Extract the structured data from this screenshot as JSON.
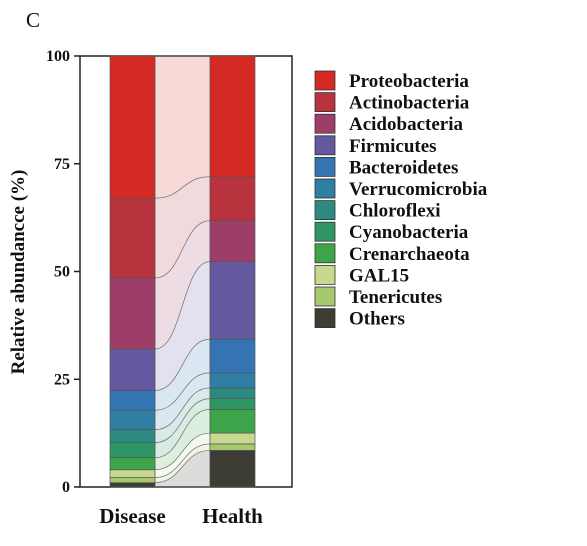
{
  "panel_label": "C",
  "chart_data": {
    "type": "bar",
    "stacked": true,
    "alluvial_links": true,
    "ylabel": "Relative abundancce (%)",
    "xlabel": "",
    "ylim": [
      0,
      100
    ],
    "yticks": [
      0,
      25,
      50,
      75,
      100
    ],
    "categories": [
      "Disease",
      "Health"
    ],
    "legend_position": "right",
    "series": [
      {
        "name": "Proteobacteria",
        "color": "#d52a24",
        "values": [
          33.0,
          28.0
        ]
      },
      {
        "name": "Actinobacteria",
        "color": "#b8333d",
        "values": [
          18.5,
          10.2
        ]
      },
      {
        "name": "Acidobacteria",
        "color": "#9e3e68",
        "values": [
          16.5,
          9.5
        ]
      },
      {
        "name": "Firmicutes",
        "color": "#64599e",
        "values": [
          9.6,
          18.0
        ]
      },
      {
        "name": "Bacteroidetes",
        "color": "#3474b3",
        "values": [
          4.6,
          7.8
        ]
      },
      {
        "name": "Verrucomicrobia",
        "color": "#2f7fa4",
        "values": [
          4.5,
          3.5
        ]
      },
      {
        "name": "Chloroflexi",
        "color": "#2d8a80",
        "values": [
          3.0,
          2.5
        ]
      },
      {
        "name": "Cyanobacteria",
        "color": "#2e9565",
        "values": [
          3.5,
          2.5
        ]
      },
      {
        "name": "Crenarchaeota",
        "color": "#3fa54a",
        "values": [
          2.8,
          5.5
        ]
      },
      {
        "name": "GAL15",
        "color": "#c6d98c",
        "values": [
          1.8,
          2.5
        ]
      },
      {
        "name": "Tenericutes",
        "color": "#a8c870",
        "values": [
          1.2,
          1.5
        ]
      },
      {
        "name": "Others",
        "color": "#3d3d36",
        "values": [
          1.0,
          8.5
        ]
      }
    ]
  }
}
